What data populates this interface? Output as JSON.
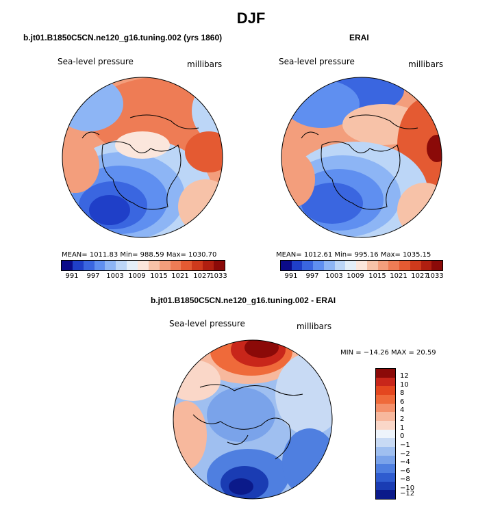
{
  "figure": {
    "title": "DJF"
  },
  "panels": [
    {
      "title": "b.jt01.B1850C5CN.ne120_g16.tuning.002 (yrs 1860)",
      "variable_label": "Sea-level pressure",
      "units_label": "millibars",
      "stats": "MEAN= 1011.83   Min= 988.59   Max= 1030.70",
      "colorbar_ticks": [
        "991",
        "997",
        "1003",
        "1009",
        "1015",
        "1021",
        "1027",
        "1033"
      ]
    },
    {
      "title": "ERAI",
      "variable_label": "Sea-level pressure",
      "units_label": "millibars",
      "stats": "MEAN= 1012.61   Min= 995.16   Max= 1035.15",
      "colorbar_ticks": [
        "991",
        "997",
        "1003",
        "1009",
        "1015",
        "1021",
        "1027",
        "1033"
      ]
    },
    {
      "title": "b.jt01.B1850C5CN.ne120_g16.tuning.002 - ERAI",
      "variable_label": "Sea-level pressure",
      "units_label": "millibars",
      "stats": "MIN = −14.26  MAX =  20.59",
      "colorbar_ticks": [
        "12",
        "10",
        "8",
        "6",
        "4",
        "2",
        "1",
        "0",
        "−1",
        "−2",
        "−4",
        "−6",
        "−8",
        "−10",
        "−12"
      ]
    }
  ],
  "colors": {
    "abs_scale": [
      "#0b0b8a",
      "#1f3fc8",
      "#3a66e0",
      "#5f8ff0",
      "#8db5f5",
      "#bcd6f7",
      "#e3eef8",
      "#fbe6dc",
      "#f7c2a8",
      "#f39e7c",
      "#ee7c55",
      "#e45a32",
      "#cf3a1c",
      "#b01f10",
      "#8b0a08"
    ],
    "diff_scale": [
      "#8b0a08",
      "#c8261a",
      "#e4471f",
      "#ef6a3a",
      "#f4906a",
      "#f7b89d",
      "#fad7c8",
      "#eef4fb",
      "#c8daf4",
      "#9fbff0",
      "#7aa3ea",
      "#4f7fe0",
      "#2f5ccf",
      "#1a3cb3",
      "#0b1a8a"
    ],
    "coastline": "#000000"
  }
}
